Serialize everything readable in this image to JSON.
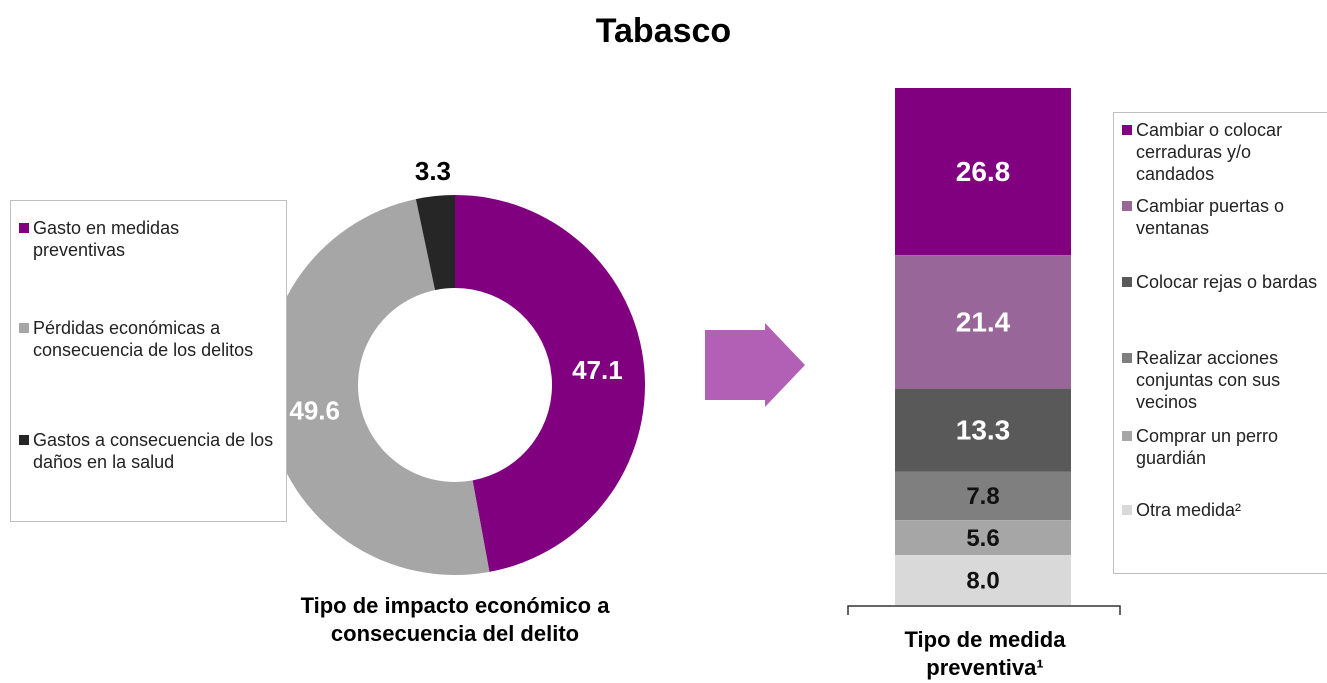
{
  "title": "Tabasco",
  "chart_data": [
    {
      "type": "pie",
      "donut": true,
      "x_label": "Tipo de impacto económico a consecuencia del delito",
      "categories": [
        "Gasto en medidas preventivas",
        "Pérdidas económicas a consecuencia de los delitos",
        "Gastos a consecuencia de los daños en la salud"
      ],
      "values": [
        47.1,
        49.6,
        3.3
      ],
      "colors": [
        "#800080",
        "#a6a6a6",
        "#262626"
      ]
    },
    {
      "type": "bar",
      "stacked": true,
      "x_label": "Tipo de medida preventiva¹",
      "categories": [
        null
      ],
      "series": [
        {
          "name": "Cambiar o colocar cerraduras y/o candados",
          "color": "#800080",
          "values": [
            26.8
          ],
          "value_labels": [
            "26.8"
          ]
        },
        {
          "name": "Cambiar puertas o ventanas",
          "color": "#996699",
          "values": [
            21.4
          ],
          "value_labels": [
            "21.4"
          ]
        },
        {
          "name": "Colocar rejas o bardas",
          "color": "#595959",
          "values": [
            13.3
          ],
          "value_labels": [
            "13.3"
          ]
        },
        {
          "name": "Realizar acciones conjuntas con sus vecinos",
          "color": "#7f7f7f",
          "values": [
            7.8
          ],
          "value_labels": [
            "7.8"
          ]
        },
        {
          "name": "Comprar un perro guardián",
          "color": "#a6a6a6",
          "values": [
            5.6
          ],
          "value_labels": [
            "5.6"
          ]
        },
        {
          "name": "Otra medida²",
          "color": "#d9d9d9",
          "values": [
            8.0
          ],
          "value_labels": [
            "8.0"
          ]
        }
      ]
    }
  ]
}
